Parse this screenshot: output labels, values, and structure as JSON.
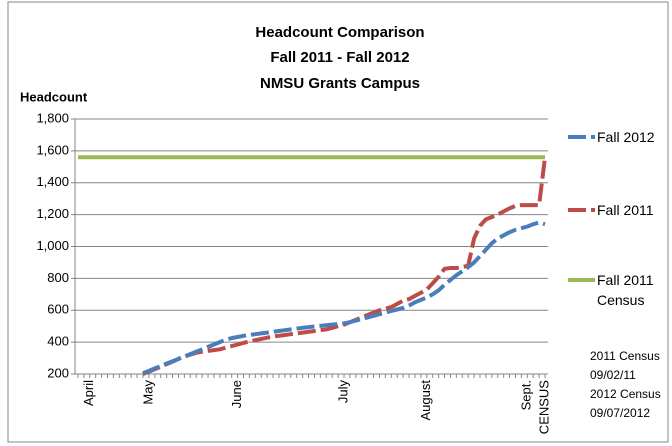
{
  "chart_data": {
    "type": "line",
    "title": [
      "Headcount Comparison",
      "Fall 2011 - Fall 2012",
      "NMSU Grants Campus"
    ],
    "ylabel": "Headcount",
    "ylim": [
      200,
      1800
    ],
    "yticks": [
      200,
      400,
      600,
      800,
      {
        "value": 1000,
        "label": "1,000"
      },
      {
        "value": 1200,
        "label": "1,200"
      },
      {
        "value": 1400,
        "label": "1,400"
      },
      {
        "value": 1600,
        "label": "1,600"
      },
      {
        "value": 1800,
        "label": "1,800"
      }
    ],
    "grid": true,
    "categories": [
      null,
      null,
      "April",
      null,
      null,
      null,
      null,
      null,
      null,
      null,
      null,
      null,
      "May",
      null,
      null,
      null,
      null,
      null,
      null,
      null,
      null,
      null,
      null,
      null,
      null,
      null,
      null,
      "June",
      null,
      null,
      null,
      null,
      null,
      null,
      null,
      null,
      null,
      null,
      null,
      null,
      null,
      null,
      null,
      null,
      null,
      "July",
      null,
      null,
      null,
      null,
      null,
      null,
      null,
      null,
      null,
      null,
      null,
      null,
      null,
      "August",
      null,
      null,
      null,
      null,
      null,
      null,
      null,
      null,
      null,
      null,
      null,
      null,
      null,
      null,
      null,
      null,
      "Sept.",
      null,
      null,
      "CENSUS"
    ],
    "series": [
      {
        "name": "Fall 2012",
        "color": "#4a7ebb",
        "dashed": true,
        "values": [
          null,
          null,
          null,
          null,
          null,
          null,
          null,
          null,
          null,
          null,
          null,
          205,
          220,
          235,
          250,
          265,
          280,
          295,
          310,
          325,
          340,
          355,
          370,
          385,
          400,
          415,
          425,
          432,
          440,
          445,
          450,
          455,
          460,
          465,
          470,
          475,
          480,
          485,
          490,
          494,
          498,
          502,
          506,
          510,
          514,
          518,
          525,
          535,
          545,
          555,
          565,
          575,
          585,
          595,
          605,
          615,
          630,
          650,
          665,
          680,
          700,
          725,
          760,
          790,
          820,
          845,
          870,
          900,
          940,
          980,
          1020,
          1050,
          1070,
          1090,
          1105,
          1115,
          1125,
          1140,
          1150,
          1140
        ]
      },
      {
        "name": "Fall 2011",
        "color": "#be4b48",
        "dashed": true,
        "values": [
          null,
          null,
          null,
          null,
          null,
          null,
          null,
          null,
          null,
          null,
          null,
          200,
          215,
          230,
          245,
          262,
          278,
          295,
          310,
          322,
          333,
          340,
          345,
          350,
          355,
          365,
          375,
          385,
          395,
          405,
          412,
          420,
          428,
          435,
          440,
          445,
          450,
          455,
          460,
          465,
          470,
          475,
          480,
          490,
          500,
          510,
          525,
          540,
          555,
          570,
          585,
          600,
          610,
          620,
          640,
          660,
          670,
          690,
          710,
          730,
          770,
          810,
          860,
          865,
          865,
          870,
          880,
          1050,
          1130,
          1170,
          1185,
          1200,
          1220,
          1240,
          1255,
          1260,
          1260,
          1260,
          1260,
          1560
        ]
      },
      {
        "name": "Fall 2011 Census",
        "color": "#98b954",
        "dashed": false,
        "values": [
          1560,
          1560,
          1560,
          1560,
          1560,
          1560,
          1560,
          1560,
          1560,
          1560,
          1560,
          1560,
          1560,
          1560,
          1560,
          1560,
          1560,
          1560,
          1560,
          1560,
          1560,
          1560,
          1560,
          1560,
          1560,
          1560,
          1560,
          1560,
          1560,
          1560,
          1560,
          1560,
          1560,
          1560,
          1560,
          1560,
          1560,
          1560,
          1560,
          1560,
          1560,
          1560,
          1560,
          1560,
          1560,
          1560,
          1560,
          1560,
          1560,
          1560,
          1560,
          1560,
          1560,
          1560,
          1560,
          1560,
          1560,
          1560,
          1560,
          1560,
          1560,
          1560,
          1560,
          1560,
          1560,
          1560,
          1560,
          1560,
          1560,
          1560,
          1560,
          1560,
          1560,
          1560,
          1560,
          1560,
          1560,
          1560,
          1560,
          1560
        ]
      }
    ],
    "annotations": [
      "2011 Census",
      "09/02/11",
      "2012 Census",
      "09/07/2012"
    ]
  }
}
